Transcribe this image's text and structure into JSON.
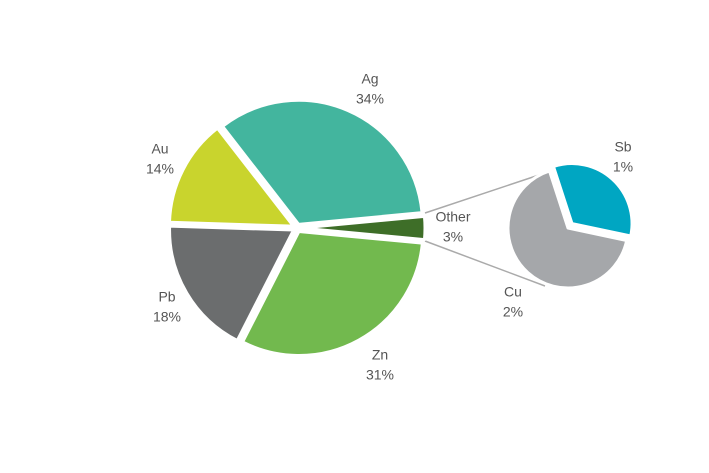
{
  "chart_data": [
    {
      "type": "pie",
      "categories": [
        "Other",
        "Zn",
        "Pb",
        "Au",
        "Ag"
      ],
      "values": [
        3,
        31,
        18,
        14,
        34
      ],
      "value_labels": [
        "3%",
        "31%",
        "18%",
        "14%",
        "34%"
      ],
      "colors": [
        "#3e6e28",
        "#72b94e",
        "#6b6d6e",
        "#c9d42d",
        "#43b59e"
      ]
    },
    {
      "type": "pie",
      "categories": [
        "Sb",
        "Cu"
      ],
      "values": [
        1,
        2
      ],
      "value_labels": [
        "1%",
        "2%"
      ],
      "colors": [
        "#00a6c2",
        "#a5a7aa"
      ]
    }
  ]
}
